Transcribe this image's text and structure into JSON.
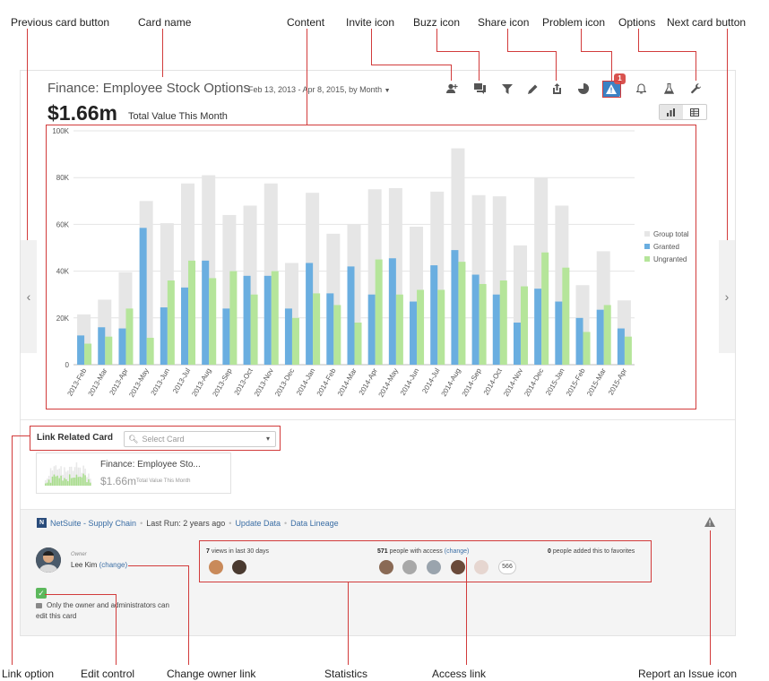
{
  "callouts": {
    "previous_card": "Previous card button",
    "card_name": "Card name",
    "content": "Content",
    "invite_icon": "Invite icon",
    "buzz_icon": "Buzz icon",
    "share_icon": "Share icon",
    "problem_icon": "Problem icon",
    "options": "Options",
    "next_card": "Next card button",
    "link_option": "Link option",
    "edit_control": "Edit control",
    "change_owner": "Change owner link",
    "statistics": "Statistics",
    "access_link": "Access link",
    "report_issue": "Report an Issue icon"
  },
  "card": {
    "title": "Finance: Employee Stock Options",
    "date_range": "Feb 13, 2013 - Apr 8, 2015, by Month",
    "value": "$1.66m",
    "value_label": "Total Value This Month",
    "problem_badge": "1"
  },
  "toolbar": {
    "icons": [
      "invite-icon",
      "buzz-icon",
      "filter-icon",
      "pencil-icon",
      "share-icon",
      "pie-chart-icon",
      "problem-icon",
      "bell-icon",
      "flask-icon",
      "wrench-icon"
    ]
  },
  "nav": {
    "prev_glyph": "‹",
    "next_glyph": "›"
  },
  "chart_data": {
    "type": "bar",
    "categories": [
      "2013-Feb",
      "2013-Mar",
      "2013-Apr",
      "2013-May",
      "2013-Jun",
      "2013-Jul",
      "2013-Aug",
      "2013-Sep",
      "2013-Oct",
      "2013-Nov",
      "2013-Dec",
      "2014-Jan",
      "2014-Feb",
      "2014-Mar",
      "2014-Apr",
      "2014-May",
      "2014-Jun",
      "2014-Jul",
      "2014-Aug",
      "2014-Sep",
      "2014-Oct",
      "2014-Nov",
      "2014-Dec",
      "2015-Jan",
      "2015-Feb",
      "2015-Mar",
      "2015-Apr"
    ],
    "series": [
      {
        "name": "Group total",
        "color": "#e6e6e6",
        "values": [
          21500,
          27800,
          39500,
          70000,
          60500,
          77500,
          81000,
          64000,
          68000,
          77500,
          43500,
          73500,
          56000,
          60000,
          75000,
          75500,
          59000,
          74000,
          92500,
          72500,
          72000,
          51000,
          80000,
          68000,
          34000,
          48500,
          27500
        ]
      },
      {
        "name": "Granted",
        "color": "#6aaee0",
        "values": [
          12500,
          16000,
          15500,
          58500,
          24500,
          33000,
          44500,
          24000,
          38000,
          38000,
          24000,
          43500,
          30500,
          42000,
          30000,
          45500,
          27000,
          42500,
          49000,
          38500,
          30000,
          18000,
          32500,
          27000,
          20000,
          23500,
          15500
        ]
      },
      {
        "name": "Ungranted",
        "color": "#b5e59a",
        "values": [
          9000,
          12000,
          24000,
          11500,
          36000,
          44500,
          37000,
          40000,
          30000,
          40000,
          20000,
          30500,
          25500,
          18000,
          45000,
          30000,
          32000,
          32000,
          44000,
          34500,
          36000,
          33500,
          48000,
          41500,
          14000,
          25500,
          12000
        ]
      }
    ],
    "y_ticks": [
      "0",
      "20K",
      "40K",
      "60K",
      "80K",
      "100K"
    ],
    "ylim": [
      0,
      100000
    ],
    "legend_position": "right"
  },
  "link_related": {
    "label": "Link Related Card",
    "placeholder": "Select Card",
    "related_title": "Finance: Employee Sto...",
    "related_value": "$1.66m",
    "related_sub": "Total Value This Month"
  },
  "source": {
    "logo": "N",
    "name": "NetSuite - Supply Chain",
    "last_run": "Last Run: 2 years ago",
    "update": "Update Data",
    "lineage": "Data Lineage"
  },
  "owner": {
    "role": "Owner",
    "name": "Lee Kim",
    "change": "(change)"
  },
  "edit_control": {
    "check": "✓",
    "text": "Only the owner and administrators can edit this card"
  },
  "stats": {
    "views_count": "7",
    "views_text": "views in last 30 days",
    "access_count": "571",
    "access_text": "people with access",
    "access_change": "(change)",
    "favorites_count": "0",
    "favorites_text": "people added this to favorites",
    "more_count": "566"
  }
}
